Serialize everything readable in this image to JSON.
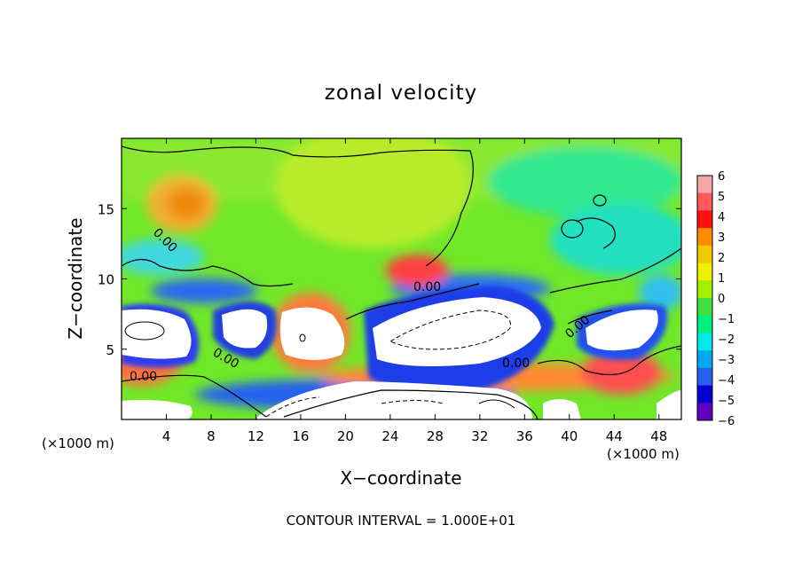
{
  "chart_data": {
    "type": "heatmap",
    "title": "zonal velocity",
    "xlabel": "X−coordinate",
    "ylabel": "Z−coordinate",
    "x_unit_left": "(×1000 m)",
    "x_unit_right": "(×1000 m)",
    "footer": "CONTOUR INTERVAL = 1.000E+01",
    "xlim": [
      0,
      50
    ],
    "ylim": [
      0,
      20
    ],
    "x_ticks": [
      4,
      8,
      12,
      16,
      20,
      24,
      28,
      32,
      36,
      40,
      44,
      48
    ],
    "y_ticks": [
      5,
      10,
      15
    ],
    "colorbar": {
      "levels": [
        6,
        5,
        4,
        3,
        2,
        1,
        0,
        -1,
        -2,
        -3,
        -4,
        -5,
        -6
      ],
      "labels": [
        "6",
        "5",
        "4",
        "3",
        "2",
        "1",
        "0",
        "−1",
        "−2",
        "−3",
        "−4",
        "−5",
        "−6"
      ],
      "colors": [
        "#f4a6a6",
        "#ff5a5a",
        "#ff1010",
        "#ff8c00",
        "#f0c800",
        "#f0f000",
        "#a0f000",
        "#40e040",
        "#00ee80",
        "#00e8e8",
        "#00a8f0",
        "#2860f0",
        "#0000d0",
        "#6000c0"
      ]
    },
    "contour_labels": [
      "0.00",
      "0.00",
      "0.00",
      "0.00",
      "0.00",
      "0.00",
      "0.00"
    ],
    "grid": false,
    "legend": "colorbar-right"
  }
}
